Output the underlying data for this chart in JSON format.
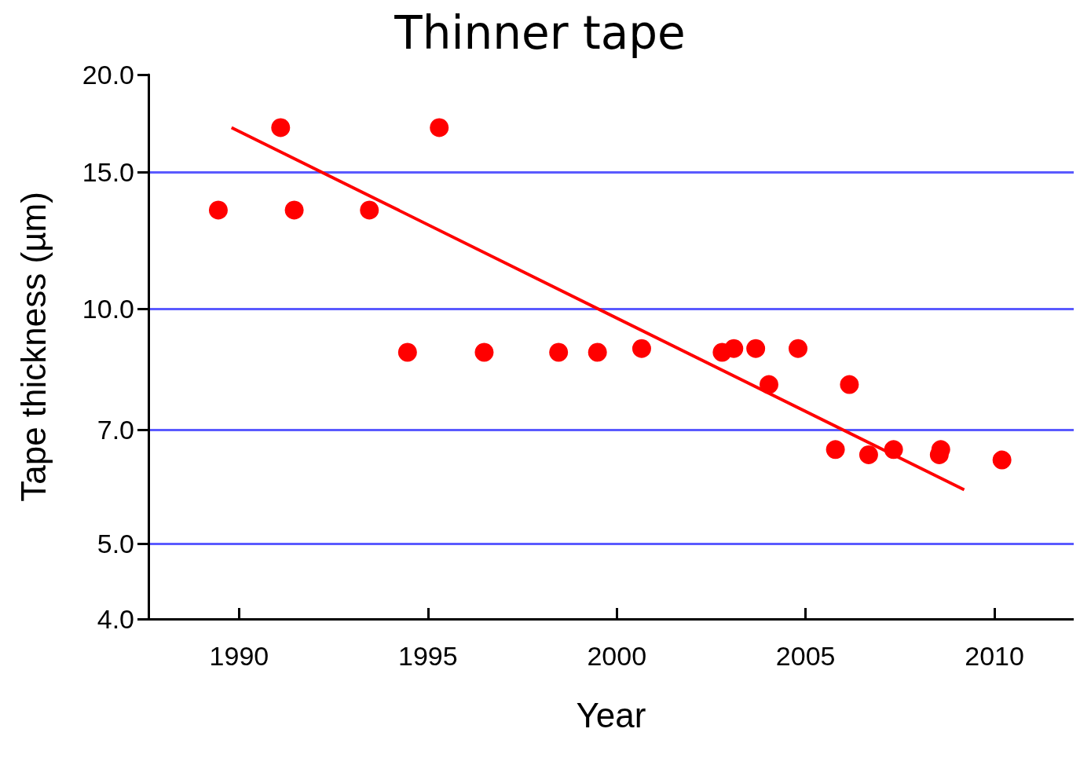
{
  "chart_data": {
    "type": "scatter",
    "title": "Thinner tape",
    "xlabel": "Year",
    "ylabel": "Tape thickness (µm)",
    "log": "y",
    "xlim": [
      1987.6,
      2012.1
    ],
    "xticks": [
      1990,
      1995,
      2000,
      2005,
      2010
    ],
    "ylim": [
      4,
      20
    ],
    "yticks": [
      {
        "value": 4,
        "label": "4.0"
      },
      {
        "value": 5,
        "label": "5.0"
      },
      {
        "value": 7,
        "label": "7.0"
      },
      {
        "value": 10,
        "label": "10.0"
      },
      {
        "value": 15,
        "label": "15.0"
      },
      {
        "value": 20,
        "label": "20.0"
      }
    ],
    "grid": "y",
    "marker": "circle",
    "series": [
      {
        "color": "#ff0000",
        "x": [
          1989.45,
          1991.1,
          1991.46,
          1993.45,
          1994.46,
          1995.3,
          1996.49,
          1998.46,
          1999.49,
          2000.66,
          2002.79,
          2003.1,
          2003.68,
          2004.03,
          2004.8,
          2006.16,
          2005.79,
          2006.67,
          2007.33,
          2008.54,
          2008.58,
          2010.2
        ],
        "values": [
          13.4,
          17.1,
          13.4,
          13.4,
          8.8,
          17.1,
          8.8,
          8.8,
          8.8,
          8.9,
          8.8,
          8.9,
          8.9,
          8.0,
          8.9,
          8.0,
          6.6,
          6.5,
          6.6,
          6.5,
          6.6,
          6.4
        ]
      },
      {
        "type": "line",
        "marker": "none",
        "color": "#ff0000",
        "x": [
          1989.8,
          2009.2
        ],
        "values": [
          17.1,
          5.86
        ]
      }
    ]
  }
}
